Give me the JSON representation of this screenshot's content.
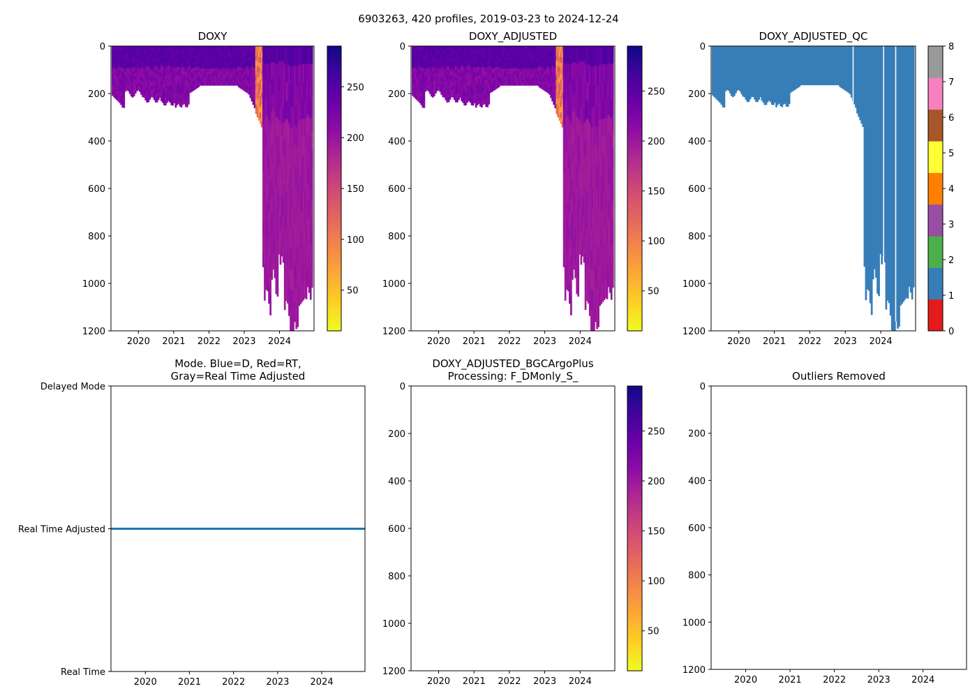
{
  "figure": {
    "suptitle": "6903263, 420 profiles, 2019-03-23 to 2024-12-24"
  },
  "colors": {
    "plasma": [
      "#0d0887",
      "#41049d",
      "#6a00a8",
      "#8f0da4",
      "#b12a90",
      "#cc4778",
      "#e16462",
      "#f2844b",
      "#fca636",
      "#fcce25",
      "#f0f921"
    ],
    "qc": [
      "#e41a1c",
      "#377eb8",
      "#4daf4a",
      "#984ea3",
      "#ff7f00",
      "#ffff33",
      "#a65628",
      "#f781bf",
      "#999999"
    ],
    "mode_line": "#1f77b4"
  },
  "chart_data": [
    {
      "id": "doxy",
      "type": "heatmap",
      "title": "DOXY",
      "xlim": [
        2019.22,
        2024.98
      ],
      "ylim": [
        1200,
        0
      ],
      "xticks": [
        2020,
        2021,
        2022,
        2023,
        2024
      ],
      "xtick_labels": [
        "2020",
        "2021",
        "2022",
        "2023",
        "2024"
      ],
      "yticks": [
        0,
        200,
        400,
        600,
        800,
        1000,
        1200
      ],
      "ytick_labels": [
        "0",
        "200",
        "400",
        "600",
        "800",
        "1000",
        "1200"
      ],
      "colorbar": {
        "range": [
          10,
          290
        ],
        "ticks": [
          50,
          100,
          150,
          200,
          250
        ],
        "tick_labels": [
          "50",
          "100",
          "150",
          "200",
          "250"
        ]
      },
      "data_range": {
        "first": "2019-03-23",
        "last": "2024-12-24",
        "profiles": 420,
        "max_depth": 1200
      }
    },
    {
      "id": "doxy_adjusted",
      "type": "heatmap",
      "title": "DOXY_ADJUSTED",
      "xlim": [
        2019.22,
        2024.98
      ],
      "ylim": [
        1200,
        0
      ],
      "xticks": [
        2020,
        2021,
        2022,
        2023,
        2024
      ],
      "xtick_labels": [
        "2020",
        "2021",
        "2022",
        "2023",
        "2024"
      ],
      "yticks": [
        0,
        200,
        400,
        600,
        800,
        1000,
        1200
      ],
      "ytick_labels": [
        "0",
        "200",
        "400",
        "600",
        "800",
        "1000",
        "1200"
      ],
      "colorbar": {
        "range": [
          10,
          295
        ],
        "ticks": [
          50,
          100,
          150,
          200,
          250
        ],
        "tick_labels": [
          "50",
          "100",
          "150",
          "200",
          "250"
        ]
      }
    },
    {
      "id": "doxy_adjusted_qc",
      "type": "heatmap",
      "title": "DOXY_ADJUSTED_QC",
      "xlim": [
        2019.22,
        2024.98
      ],
      "ylim": [
        1200,
        0
      ],
      "xticks": [
        2020,
        2021,
        2022,
        2023,
        2024
      ],
      "xtick_labels": [
        "2020",
        "2021",
        "2022",
        "2023",
        "2024"
      ],
      "yticks": [
        0,
        200,
        400,
        600,
        800,
        1000,
        1200
      ],
      "ytick_labels": [
        "0",
        "200",
        "400",
        "600",
        "800",
        "1000",
        "1200"
      ],
      "dominant_qc": 1,
      "colorbar": {
        "range": [
          0,
          8
        ],
        "ticks": [
          0,
          1,
          2,
          3,
          4,
          5,
          6,
          7,
          8
        ],
        "tick_labels": [
          "0",
          "1",
          "2",
          "3",
          "4",
          "5",
          "6",
          "7",
          "8"
        ]
      }
    },
    {
      "id": "mode",
      "type": "line",
      "title_lines": [
        "Mode. Blue=D, Red=RT,",
        "Gray=Real Time Adjusted"
      ],
      "xlim": [
        2019.22,
        2024.98
      ],
      "xticks": [
        2020,
        2021,
        2022,
        2023,
        2024
      ],
      "xtick_labels": [
        "2020",
        "2021",
        "2022",
        "2023",
        "2024"
      ],
      "ylim": [
        0,
        2
      ],
      "yticks": [
        2,
        1,
        0
      ],
      "ytick_labels": [
        "Delayed Mode",
        "Real Time Adjusted",
        "Real Time"
      ],
      "series": [
        {
          "name": "mode",
          "x": [
            2019.22,
            2024.98
          ],
          "y": [
            1,
            1
          ]
        }
      ]
    },
    {
      "id": "bgcargoplus",
      "type": "heatmap",
      "title_lines": [
        "DOXY_ADJUSTED_BGCArgoPlus",
        "Processing: F_DMonly_S_"
      ],
      "xlim": [
        2019.22,
        2024.98
      ],
      "ylim": [
        1200,
        0
      ],
      "xticks": [
        2020,
        2021,
        2022,
        2023,
        2024
      ],
      "xtick_labels": [
        "2020",
        "2021",
        "2022",
        "2023",
        "2024"
      ],
      "yticks": [
        0,
        200,
        400,
        600,
        800,
        1000,
        1200
      ],
      "ytick_labels": [
        "0",
        "200",
        "400",
        "600",
        "800",
        "1000",
        "1200"
      ],
      "colorbar": {
        "range": [
          10,
          295
        ],
        "ticks": [
          50,
          100,
          150,
          200,
          250
        ],
        "tick_labels": [
          "50",
          "100",
          "150",
          "200",
          "250"
        ]
      },
      "empty": true
    },
    {
      "id": "outliers",
      "type": "scatter",
      "title": "Outliers Removed",
      "xlim": [
        2019.22,
        2024.98
      ],
      "ylim": [
        1200,
        0
      ],
      "xticks": [
        2020,
        2021,
        2022,
        2023,
        2024
      ],
      "xtick_labels": [
        "2020",
        "2021",
        "2022",
        "2023",
        "2024"
      ],
      "yticks": [
        0,
        200,
        400,
        600,
        800,
        1000,
        1200
      ],
      "ytick_labels": [
        "0",
        "200",
        "400",
        "600",
        "800",
        "1000",
        "1200"
      ],
      "empty": true
    }
  ]
}
